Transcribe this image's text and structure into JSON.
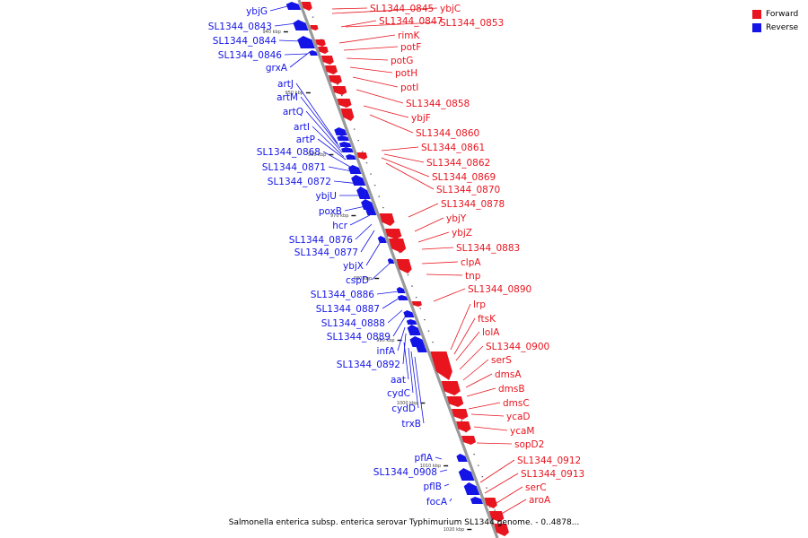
{
  "colors": {
    "forward": "#e8141e",
    "reverse": "#1414e6",
    "backbone": "#9a9a9a"
  },
  "legend": {
    "forward_label": "Forward",
    "reverse_label": "Reverse"
  },
  "caption": "Salmonella enterica subsp. enterica serovar Typhimurium SL1344 genome. - 0..4878...",
  "ticks": [
    "940 kbp",
    "950 kbp",
    "960 kbp",
    "970 kbp",
    "980 kbp",
    "990 kbp",
    "1000 kbp",
    "1010 kbp",
    "1020 kbp"
  ],
  "reverse_genes": [
    "ybjG",
    "SL1344_0843",
    "SL1344_0844",
    "SL1344_0846",
    "grxA",
    "artJ",
    "artM",
    "artQ",
    "artI",
    "artP",
    "SL1344_0868",
    "SL1344_0871",
    "SL1344_0872",
    "ybjU",
    "poxB",
    "hcr",
    "SL1344_0876",
    "SL1344_0877",
    "ybjX",
    "cspD",
    "SL1344_0886",
    "SL1344_0887",
    "SL1344_0888",
    "SL1344_0889",
    "infA",
    "SL1344_0892",
    "aat",
    "cydC",
    "cydD",
    "trxB",
    "pflA",
    "SL1344_0908",
    "pflB",
    "focA"
  ],
  "forward_genes": [
    "SL1344_0845",
    "ybjC",
    "SL1344_0847",
    "SL1344_0853",
    "rimK",
    "potF",
    "potG",
    "potH",
    "potI",
    "SL1344_0858",
    "ybjF",
    "SL1344_0860",
    "SL1344_0861",
    "SL1344_0862",
    "SL1344_0869",
    "SL1344_0870",
    "SL1344_0878",
    "ybjY",
    "ybjZ",
    "SL1344_0883",
    "clpA",
    "tnp",
    "SL1344_0890",
    "lrp",
    "ftsK",
    "lolA",
    "SL1344_0900",
    "serS",
    "dmsA",
    "dmsB",
    "dmsC",
    "ycaD",
    "ycaM",
    "sopD2",
    "SL1344_0912",
    "SL1344_0913",
    "serC",
    "aroA"
  ]
}
